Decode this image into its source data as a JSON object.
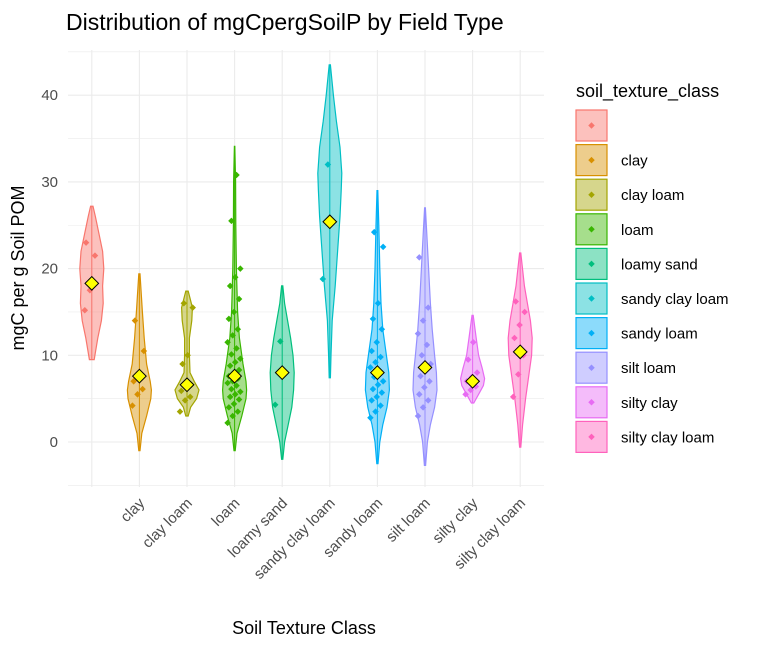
{
  "chart_data": {
    "type": "violin",
    "title": "Distribution of mgCpergSoilP by Field Type",
    "xlabel": "Soil Texture Class",
    "ylabel": "mgC per g Soil POM",
    "ylim": [
      -5,
      45
    ],
    "yticks": [
      0,
      10,
      20,
      30,
      40
    ],
    "grid": true,
    "legend": {
      "title": "soil_texture_class",
      "position": "right"
    },
    "categories": [
      "",
      "clay",
      "clay loam",
      "loam",
      "loamy sand",
      "sandy clay loam",
      "sandy loam",
      "silt loam",
      "silty clay",
      "silty clay loam"
    ],
    "colors": [
      "#F8766D",
      "#D89000",
      "#A3A500",
      "#39B600",
      "#00BF7D",
      "#00BFC4",
      "#00B0F6",
      "#9590FF",
      "#E76BF3",
      "#FF62BC"
    ],
    "series": [
      {
        "name": "",
        "range": [
          9.5,
          27.2
        ],
        "shape": [
          [
            9.5,
            0.2
          ],
          [
            12,
            0.5
          ],
          [
            14,
            0.8
          ],
          [
            16,
            0.95
          ],
          [
            18,
            0.9
          ],
          [
            20,
            1
          ],
          [
            22,
            0.9
          ],
          [
            24,
            0.6
          ],
          [
            26,
            0.3
          ],
          [
            27.2,
            0.1
          ]
        ],
        "mean": 18.3,
        "points": [
          15.2,
          17.5,
          21.5,
          23.0
        ]
      },
      {
        "name": "clay",
        "range": [
          -1.0,
          19.4
        ],
        "shape": [
          [
            -1,
            0.05
          ],
          [
            1,
            0.2
          ],
          [
            3,
            0.6
          ],
          [
            5,
            0.95
          ],
          [
            6,
            1
          ],
          [
            7,
            0.9
          ],
          [
            9,
            0.6
          ],
          [
            12,
            0.4
          ],
          [
            15,
            0.25
          ],
          [
            19.4,
            0.05
          ]
        ],
        "mean": 7.6,
        "points": [
          4.2,
          5.5,
          6.1,
          7.0,
          8.0,
          10.5,
          14.0
        ]
      },
      {
        "name": "clay loam",
        "range": [
          3.0,
          17.4
        ],
        "shape": [
          [
            3,
            0.1
          ],
          [
            4,
            0.3
          ],
          [
            5,
            0.8
          ],
          [
            6,
            1
          ],
          [
            7,
            0.6
          ],
          [
            8,
            0.25
          ],
          [
            10,
            0.2
          ],
          [
            12,
            0.2
          ],
          [
            14,
            0.4
          ],
          [
            15.5,
            0.45
          ],
          [
            17.4,
            0.1
          ]
        ],
        "mean": 6.6,
        "points": [
          3.5,
          4.8,
          5.2,
          5.9,
          6.3,
          6.6,
          9.0,
          10.0,
          15.5,
          16.0
        ]
      },
      {
        "name": "loam",
        "range": [
          -1.0,
          34.1
        ],
        "shape": [
          [
            -1,
            0.05
          ],
          [
            1,
            0.2
          ],
          [
            3,
            0.6
          ],
          [
            5,
            0.95
          ],
          [
            6,
            1
          ],
          [
            7,
            0.95
          ],
          [
            9,
            0.7
          ],
          [
            12,
            0.4
          ],
          [
            15,
            0.25
          ],
          [
            20,
            0.15
          ],
          [
            25,
            0.1
          ],
          [
            30,
            0.08
          ],
          [
            34.1,
            0.02
          ]
        ],
        "mean": 7.6,
        "points": [
          2.2,
          3.0,
          3.5,
          4.0,
          4.4,
          4.9,
          5.2,
          5.5,
          5.8,
          6.1,
          6.5,
          6.8,
          7.0,
          7.3,
          7.6,
          8.0,
          8.3,
          8.8,
          9.2,
          9.6,
          10.1,
          10.8,
          11.5,
          12.3,
          13.0,
          14.2,
          15.0,
          16.5,
          18.0,
          19.0,
          20.0,
          25.5,
          30.8
        ]
      },
      {
        "name": "loamy sand",
        "range": [
          -2.0,
          18.0
        ],
        "shape": [
          [
            -2,
            0.05
          ],
          [
            0,
            0.2
          ],
          [
            2,
            0.5
          ],
          [
            4,
            0.8
          ],
          [
            6,
            0.95
          ],
          [
            8,
            1
          ],
          [
            10,
            0.9
          ],
          [
            12,
            0.7
          ],
          [
            14,
            0.45
          ],
          [
            16,
            0.2
          ],
          [
            18,
            0.05
          ]
        ],
        "mean": 8.0,
        "points": [
          4.3,
          11.6
        ]
      },
      {
        "name": "sandy clay loam",
        "range": [
          7.4,
          43.5
        ],
        "shape": [
          [
            7.4,
            0.05
          ],
          [
            10,
            0.1
          ],
          [
            14,
            0.2
          ],
          [
            18,
            0.45
          ],
          [
            22,
            0.65
          ],
          [
            26,
            0.85
          ],
          [
            29,
            0.95
          ],
          [
            31,
            1
          ],
          [
            34,
            0.85
          ],
          [
            37,
            0.55
          ],
          [
            40,
            0.3
          ],
          [
            43.5,
            0.05
          ]
        ],
        "mean": 25.4,
        "points": [
          18.8,
          32.0
        ]
      },
      {
        "name": "sandy loam",
        "range": [
          -2.5,
          29.0
        ],
        "shape": [
          [
            -2.5,
            0.05
          ],
          [
            0,
            0.2
          ],
          [
            2,
            0.45
          ],
          [
            4,
            0.8
          ],
          [
            6,
            1
          ],
          [
            8,
            0.95
          ],
          [
            10,
            0.75
          ],
          [
            13,
            0.45
          ],
          [
            16,
            0.3
          ],
          [
            20,
            0.2
          ],
          [
            25,
            0.12
          ],
          [
            29,
            0.03
          ]
        ],
        "mean": 8.0,
        "points": [
          2.8,
          3.5,
          4.2,
          4.8,
          5.2,
          5.7,
          6.1,
          6.6,
          7.0,
          7.5,
          8.0,
          8.6,
          9.2,
          9.8,
          10.5,
          11.5,
          13.0,
          14.2,
          16.0,
          22.5,
          24.2
        ]
      },
      {
        "name": "silt loam",
        "range": [
          -2.7,
          27.0
        ],
        "shape": [
          [
            -2.7,
            0.05
          ],
          [
            0,
            0.2
          ],
          [
            2,
            0.45
          ],
          [
            4,
            0.8
          ],
          [
            6,
            1
          ],
          [
            8,
            0.95
          ],
          [
            10,
            0.8
          ],
          [
            13,
            0.6
          ],
          [
            16,
            0.45
          ],
          [
            20,
            0.3
          ],
          [
            24,
            0.15
          ],
          [
            27,
            0.03
          ]
        ],
        "mean": 8.6,
        "points": [
          3.0,
          4.0,
          4.8,
          5.5,
          6.3,
          7.0,
          7.6,
          8.2,
          9.0,
          10.0,
          11.2,
          12.5,
          14.0,
          15.5,
          21.3
        ]
      },
      {
        "name": "silty clay",
        "range": [
          4.5,
          14.6
        ],
        "shape": [
          [
            4.5,
            0.1
          ],
          [
            5.5,
            0.5
          ],
          [
            6.5,
            0.9
          ],
          [
            7.3,
            1
          ],
          [
            8.5,
            0.8
          ],
          [
            10,
            0.5
          ],
          [
            12,
            0.3
          ],
          [
            14.6,
            0.05
          ]
        ],
        "mean": 7.0,
        "points": [
          5.5,
          6.0,
          6.4,
          7.0,
          7.5,
          8.0,
          9.5,
          11.5
        ]
      },
      {
        "name": "silty clay loam",
        "range": [
          -0.6,
          21.8
        ],
        "shape": [
          [
            -0.6,
            0.05
          ],
          [
            2,
            0.2
          ],
          [
            5,
            0.45
          ],
          [
            8,
            0.75
          ],
          [
            10,
            0.95
          ],
          [
            12,
            1
          ],
          [
            14,
            0.85
          ],
          [
            16,
            0.6
          ],
          [
            18,
            0.35
          ],
          [
            21.8,
            0.05
          ]
        ],
        "mean": 10.4,
        "points": [
          5.2,
          7.8,
          10.0,
          12.0,
          13.5,
          15.0,
          16.2
        ]
      }
    ]
  }
}
